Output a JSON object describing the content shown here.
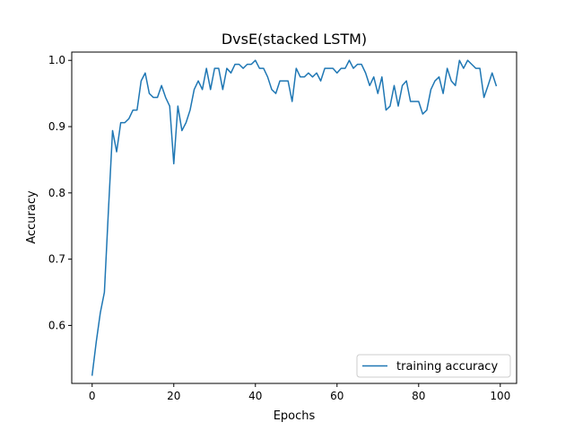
{
  "chart_data": {
    "type": "line",
    "title": "DvsE(stacked LSTM)",
    "xlabel": "Epochs",
    "ylabel": "Accuracy",
    "xlim": [
      -5,
      104
    ],
    "ylim": [
      0.5125,
      1.0125
    ],
    "xticks": [
      0,
      20,
      40,
      60,
      80,
      100
    ],
    "yticks": [
      0.6,
      0.7,
      0.8,
      0.9,
      1.0
    ],
    "xtick_labels": [
      "0",
      "20",
      "40",
      "60",
      "80",
      "100"
    ],
    "ytick_labels": [
      "0.6",
      "0.7",
      "0.8",
      "0.9",
      "1.0"
    ],
    "grid": false,
    "legend_position": "lower-right",
    "series": [
      {
        "name": "training accuracy",
        "color": "#1f77b4",
        "x": [
          0,
          1,
          2,
          3,
          4,
          5,
          6,
          7,
          8,
          9,
          10,
          11,
          12,
          13,
          14,
          15,
          16,
          17,
          18,
          19,
          20,
          21,
          22,
          23,
          24,
          25,
          26,
          27,
          28,
          29,
          30,
          31,
          32,
          33,
          34,
          35,
          36,
          37,
          38,
          39,
          40,
          41,
          42,
          43,
          44,
          45,
          46,
          47,
          48,
          49,
          50,
          51,
          52,
          53,
          54,
          55,
          56,
          57,
          58,
          59,
          60,
          61,
          62,
          63,
          64,
          65,
          66,
          67,
          68,
          69,
          70,
          71,
          72,
          73,
          74,
          75,
          76,
          77,
          78,
          79,
          80,
          81,
          82,
          83,
          84,
          85,
          86,
          87,
          88,
          89,
          90,
          91,
          92,
          93,
          94,
          95,
          96,
          97,
          98,
          99
        ],
        "values": [
          0.525,
          0.575,
          0.619,
          0.65,
          0.775,
          0.894,
          0.862,
          0.906,
          0.906,
          0.912,
          0.925,
          0.925,
          0.969,
          0.981,
          0.95,
          0.944,
          0.944,
          0.962,
          0.944,
          0.931,
          0.844,
          0.931,
          0.894,
          0.906,
          0.925,
          0.956,
          0.969,
          0.956,
          0.988,
          0.956,
          0.988,
          0.988,
          0.956,
          0.988,
          0.981,
          0.994,
          0.994,
          0.988,
          0.994,
          0.994,
          1.0,
          0.988,
          0.988,
          0.975,
          0.956,
          0.95,
          0.969,
          0.969,
          0.969,
          0.938,
          0.988,
          0.975,
          0.975,
          0.981,
          0.975,
          0.981,
          0.969,
          0.988,
          0.988,
          0.988,
          0.981,
          0.988,
          0.988,
          1.0,
          0.988,
          0.994,
          0.994,
          0.981,
          0.962,
          0.975,
          0.95,
          0.975,
          0.925,
          0.931,
          0.962,
          0.931,
          0.962,
          0.969,
          0.938,
          0.938,
          0.938,
          0.919,
          0.925,
          0.956,
          0.969,
          0.975,
          0.95,
          0.988,
          0.969,
          0.962,
          1.0,
          0.988,
          1.0,
          0.994,
          0.988,
          0.988,
          0.944,
          0.962,
          0.981,
          0.962
        ]
      }
    ]
  }
}
